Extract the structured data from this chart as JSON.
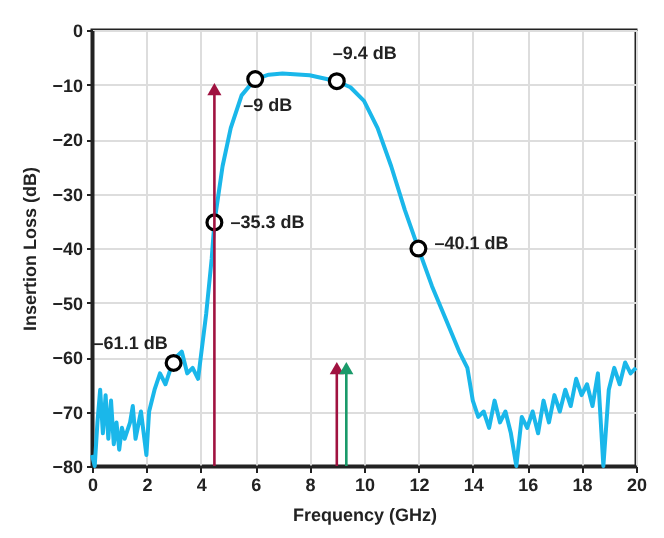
{
  "chart_data": {
    "type": "line",
    "xlabel": "Frequency (GHz)",
    "ylabel": "Insertion Loss (dB)",
    "xlim": [
      0,
      20
    ],
    "xticks": [
      0,
      2,
      4,
      6,
      8,
      10,
      12,
      14,
      16,
      18,
      20
    ],
    "ylim": [
      -80,
      0
    ],
    "yticks": [
      -80,
      -70,
      -60,
      -50,
      -40,
      -30,
      -20,
      -10,
      0
    ],
    "grid": true,
    "series": [
      {
        "type": "line",
        "color": "#1ab7ea",
        "x": [
          0,
          0.1,
          0.2,
          0.3,
          0.4,
          0.5,
          0.6,
          0.7,
          0.8,
          0.9,
          1.0,
          1.1,
          1.2,
          1.4,
          1.5,
          1.6,
          1.8,
          2.0,
          2.1,
          2.3,
          2.5,
          2.7,
          2.9,
          3.1,
          3.3,
          3.5,
          3.7,
          3.9,
          4.0,
          4.2,
          4.4,
          4.5,
          4.8,
          5.1,
          5.5,
          6.0,
          6.5,
          7,
          8,
          9,
          9.5,
          10,
          10.5,
          11,
          11.5,
          12,
          12.5,
          13,
          13.5,
          13.8,
          14,
          14.2,
          14.4,
          14.6,
          14.8,
          15,
          15.2,
          15.4,
          15.6,
          15.8,
          16,
          16.2,
          16.4,
          16.6,
          16.8,
          17,
          17.2,
          17.4,
          17.6,
          17.8,
          18,
          18.2,
          18.4,
          18.6,
          18.8,
          19,
          19.2,
          19.4,
          19.6,
          19.8,
          20
        ],
        "values": [
          -78,
          -80,
          -72,
          -66,
          -74,
          -67,
          -75,
          -68,
          -76,
          -72,
          -77,
          -73,
          -75,
          -72,
          -69,
          -75,
          -70,
          -78,
          -70,
          -66,
          -63,
          -65,
          -62,
          -60,
          -59,
          -63,
          -62,
          -64,
          -60,
          -52,
          -42,
          -35.3,
          -25,
          -18,
          -12,
          -9,
          -8.2,
          -8,
          -8.3,
          -9.4,
          -10.5,
          -13,
          -18,
          -25,
          -33,
          -40.1,
          -47,
          -53,
          -59,
          -62,
          -68,
          -71,
          -70,
          -73,
          -68,
          -72,
          -70,
          -74,
          -80,
          -71,
          -73,
          -70,
          -74,
          -68,
          -72,
          -67,
          -70,
          -66,
          -69,
          -64,
          -67,
          -65,
          -69,
          -63,
          -80,
          -66,
          -62,
          -65,
          -61,
          -63,
          -62
        ]
      },
      {
        "type": "scatter",
        "color": "#000000",
        "marker": "circle",
        "x": [
          3,
          4.5,
          6,
          9,
          12
        ],
        "values": [
          -61.1,
          -35.3,
          -9,
          -9.4,
          -40.1
        ]
      }
    ],
    "annotations": [
      {
        "text": "–61.1 dB",
        "x": 3,
        "y": -61.1
      },
      {
        "text": "–35.3 dB",
        "x": 4.5,
        "y": -35.3
      },
      {
        "text": "–9 dB",
        "x": 6,
        "y": -9
      },
      {
        "text": "–9.4 dB",
        "x": 9,
        "y": -9.4
      },
      {
        "text": "–40.1 dB",
        "x": 12,
        "y": -40.1
      }
    ],
    "ref_lines": [
      {
        "axis": "x",
        "value": 4.5,
        "color": "#a01240"
      },
      {
        "axis": "x",
        "value": 9,
        "color": "#a01240"
      },
      {
        "axis": "x",
        "value": 9.35,
        "color": "#1a9a6a"
      }
    ]
  }
}
